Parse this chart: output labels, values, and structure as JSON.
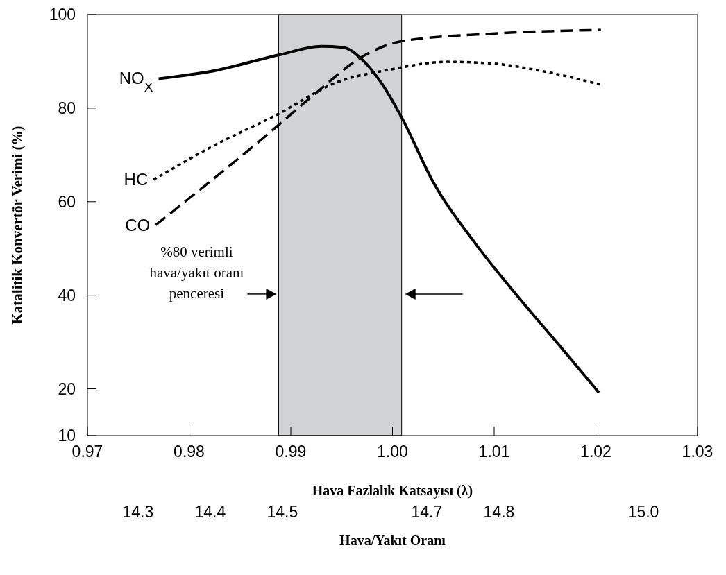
{
  "chart_data": {
    "type": "line",
    "xlabel": "Hava Fazlalık Katsayısı (λ)",
    "ylabel": "Katalitik Konvertör Verimi  (%)",
    "x2label": "Hava/Yakıt Oranı",
    "xlim": [
      0.97,
      1.03
    ],
    "xticks": [
      {
        "value": 0.97,
        "label": "0.97"
      },
      {
        "value": 0.98,
        "label": "0.98"
      },
      {
        "value": 0.99,
        "label": "0.99"
      },
      {
        "value": 1.0,
        "label": "1.00"
      },
      {
        "value": 1.01,
        "label": "1.01"
      },
      {
        "value": 1.02,
        "label": "1.02"
      },
      {
        "value": 1.03,
        "label": "1.03"
      }
    ],
    "x2lim": [
      14.23,
      15.075
    ],
    "x2ticks": [
      {
        "value": 14.3,
        "label": "14.3"
      },
      {
        "value": 14.4,
        "label": "14.4"
      },
      {
        "value": 14.5,
        "label": "14.5"
      },
      {
        "value": 14.7,
        "label": "14.7"
      },
      {
        "value": 14.8,
        "label": "14.8"
      },
      {
        "value": 15.0,
        "label": "15.0"
      }
    ],
    "ylim": [
      10,
      100
    ],
    "yticks": [
      10,
      20,
      40,
      60,
      80,
      100
    ],
    "grid": false,
    "legend": false,
    "marker": "none",
    "bands": [
      {
        "axis": "x",
        "from": 0.9888,
        "to": 1.0009,
        "label": "%80 verimli\nhava/yakıt oranı\npenceresi",
        "color": "#d1d2d4"
      }
    ],
    "series": [
      {
        "name": "NO$_{X}$",
        "color": "#000000",
        "line_style": "solid",
        "x": [
          0.977,
          0.982,
          0.9889,
          0.993,
          0.9951,
          0.9971,
          0.9989,
          1.0009,
          1.004,
          1.0081,
          1.0123,
          1.0164,
          1.0203
        ],
        "values": [
          86.3,
          87.8,
          91.4,
          93.2,
          93.0,
          90.2,
          85.4,
          78.0,
          64.2,
          51.2,
          39.8,
          29.3,
          19.2
        ]
      },
      {
        "name": "HC",
        "color": "#000000",
        "line_style": "dotted",
        "x": [
          0.9765,
          0.982,
          0.9889,
          0.9944,
          0.9999,
          1.0054,
          1.0095,
          1.015,
          1.0205
        ],
        "values": [
          64.7,
          71.5,
          78.9,
          85.4,
          88.3,
          89.9,
          89.6,
          87.8,
          85.0
        ]
      },
      {
        "name": "CO",
        "color": "#000000",
        "line_style": "dashed",
        "x": [
          0.9767,
          0.982,
          0.9875,
          0.9923,
          0.9971,
          1.0009,
          1.0095,
          1.0205
        ],
        "values": [
          55.0,
          64.2,
          74.0,
          82.9,
          91.1,
          94.3,
          95.9,
          96.7
        ]
      }
    ]
  }
}
